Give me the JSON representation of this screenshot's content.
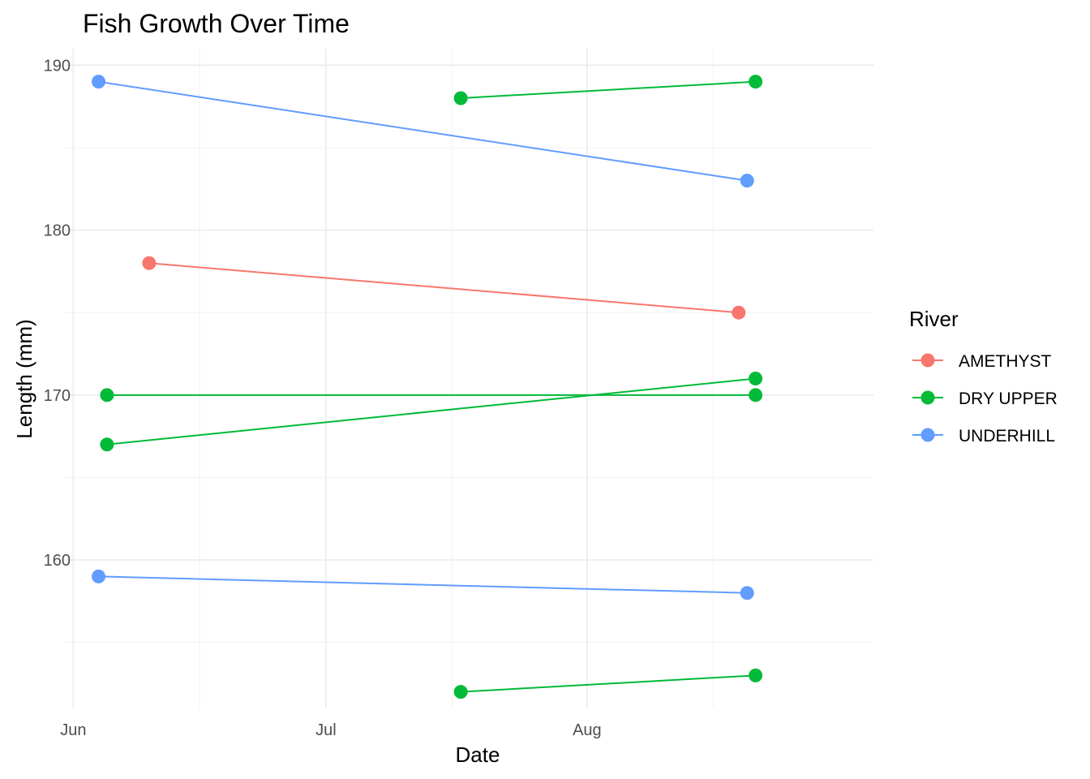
{
  "chart_data": {
    "type": "line",
    "title": "Fish Growth Over Time",
    "xlabel": "Date",
    "ylabel": "Length (mm)",
    "x_ticks": [
      "Jun",
      "Jul",
      "Aug"
    ],
    "y_ticks": [
      "160",
      "170",
      "180",
      "190"
    ],
    "x_range": [
      "2023-05-31",
      "2023-09-04"
    ],
    "y_range": [
      151,
      191
    ],
    "grid": true,
    "legend": {
      "title": "River",
      "position": "right",
      "entries": [
        {
          "name": "AMETHYST",
          "color": "#F8766D"
        },
        {
          "name": "DRY UPPER",
          "color": "#00BA38"
        },
        {
          "name": "UNDERHILL",
          "color": "#619CFF"
        }
      ]
    },
    "series": [
      {
        "river": "UNDERHILL",
        "color": "#619CFF",
        "points": [
          {
            "x": "2023-06-04",
            "y": 189
          },
          {
            "x": "2023-08-20",
            "y": 183
          }
        ]
      },
      {
        "river": "DRY UPPER",
        "color": "#00BA38",
        "points": [
          {
            "x": "2023-07-17",
            "y": 188
          },
          {
            "x": "2023-08-21",
            "y": 189
          }
        ]
      },
      {
        "river": "AMETHYST",
        "color": "#F8766D",
        "points": [
          {
            "x": "2023-06-10",
            "y": 178
          },
          {
            "x": "2023-08-19",
            "y": 175
          }
        ]
      },
      {
        "river": "DRY UPPER",
        "color": "#00BA38",
        "points": [
          {
            "x": "2023-06-05",
            "y": 170
          },
          {
            "x": "2023-08-21",
            "y": 170
          }
        ]
      },
      {
        "river": "DRY UPPER",
        "color": "#00BA38",
        "points": [
          {
            "x": "2023-06-05",
            "y": 167
          },
          {
            "x": "2023-08-21",
            "y": 171
          }
        ]
      },
      {
        "river": "UNDERHILL",
        "color": "#619CFF",
        "points": [
          {
            "x": "2023-06-04",
            "y": 159
          },
          {
            "x": "2023-08-20",
            "y": 158
          }
        ]
      },
      {
        "river": "DRY UPPER",
        "color": "#00BA38",
        "points": [
          {
            "x": "2023-07-17",
            "y": 152
          },
          {
            "x": "2023-08-21",
            "y": 153
          }
        ]
      }
    ]
  }
}
